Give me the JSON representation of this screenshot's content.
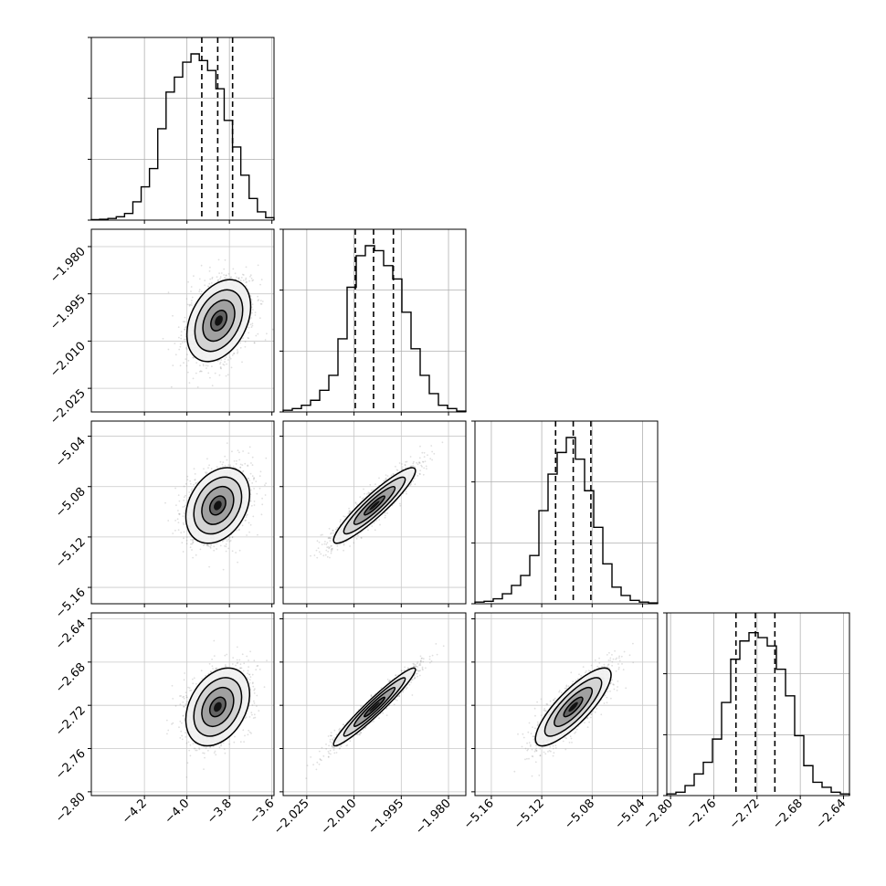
{
  "chart_data": {
    "type": "corner",
    "parameters": [
      {
        "ticks": [
          "−4.2",
          "−4.0",
          "−3.8",
          "−3.6"
        ],
        "tick_values": [
          -4.2,
          -4.0,
          -3.8,
          -3.6
        ],
        "range": [
          -4.45,
          -3.59
        ],
        "median": -3.855,
        "q16": -3.93,
        "q84": -3.785
      },
      {
        "ticks": [
          "−2.025",
          "−2.010",
          "−1.995",
          "−1.980"
        ],
        "tick_values": [
          -2.025,
          -2.01,
          -1.995,
          -1.98
        ],
        "range": [
          -2.0325,
          -1.9745
        ],
        "median": -2.0038,
        "q16": -2.0096,
        "q84": -1.9975
      },
      {
        "ticks": [
          "−5.16",
          "−5.12",
          "−5.08",
          "−5.04"
        ],
        "tick_values": [
          -5.16,
          -5.12,
          -5.08,
          -5.04
        ],
        "range": [
          -5.173,
          -5.028
        ],
        "median": -5.095,
        "q16": -5.109,
        "q84": -5.081
      },
      {
        "ticks": [
          "−2.80",
          "−2.76",
          "−2.72",
          "−2.68",
          "−2.64"
        ],
        "tick_values": [
          -2.8,
          -2.76,
          -2.72,
          -2.68,
          -2.64
        ],
        "range": [
          -2.8035,
          -2.6345
        ],
        "median": -2.7215,
        "q16": -2.7395,
        "q84": -2.7035
      }
    ],
    "histograms": [
      [
        0.003,
        0.005,
        0.01,
        0.02,
        0.04,
        0.11,
        0.2,
        0.31,
        0.55,
        0.77,
        0.86,
        0.95,
        1.0,
        0.96,
        0.9,
        0.79,
        0.6,
        0.44,
        0.27,
        0.13,
        0.05,
        0.015
      ],
      [
        0.01,
        0.02,
        0.04,
        0.07,
        0.13,
        0.22,
        0.44,
        0.75,
        0.94,
        1.0,
        0.97,
        0.88,
        0.8,
        0.6,
        0.38,
        0.22,
        0.11,
        0.04,
        0.02,
        0.005
      ],
      [
        0.01,
        0.015,
        0.03,
        0.06,
        0.11,
        0.17,
        0.29,
        0.56,
        0.78,
        0.91,
        1.0,
        0.87,
        0.68,
        0.46,
        0.24,
        0.1,
        0.05,
        0.02,
        0.01,
        0.005
      ],
      [
        0.01,
        0.02,
        0.06,
        0.13,
        0.2,
        0.34,
        0.56,
        0.82,
        0.93,
        0.98,
        0.95,
        0.9,
        0.76,
        0.6,
        0.36,
        0.18,
        0.08,
        0.05,
        0.02,
        0.01
      ]
    ],
    "pairs": [
      {
        "row": 1,
        "col": 0,
        "center": [
          -3.85,
          -2.0035
        ],
        "sigma": [
          0.075,
          0.0065
        ],
        "rho": 0.35
      },
      {
        "row": 2,
        "col": 0,
        "center": [
          -3.855,
          -5.095
        ],
        "sigma": [
          0.075,
          0.015
        ],
        "rho": 0.3
      },
      {
        "row": 2,
        "col": 1,
        "center": [
          -2.0035,
          -5.095
        ],
        "sigma": [
          0.0065,
          0.015
        ],
        "rho": 0.92
      },
      {
        "row": 3,
        "col": 0,
        "center": [
          -3.855,
          -2.7215
        ],
        "sigma": [
          0.075,
          0.018
        ],
        "rho": 0.33
      },
      {
        "row": 3,
        "col": 1,
        "center": [
          -2.0035,
          -2.7215
        ],
        "sigma": [
          0.0065,
          0.018
        ],
        "rho": 0.96
      },
      {
        "row": 3,
        "col": 2,
        "center": [
          -5.095,
          -2.7215
        ],
        "sigma": [
          0.015,
          0.018
        ],
        "rho": 0.82
      }
    ],
    "contour_levels_sigma": [
      0.5,
      1.0,
      1.5,
      2.0
    ],
    "contour_fill_greys": [
      "#f1f1f1",
      "#cfcfcf",
      "#9a9a9a",
      "#5c5c5c",
      "#111111"
    ],
    "scatter_color": "#8c8c8c",
    "grid": true
  }
}
